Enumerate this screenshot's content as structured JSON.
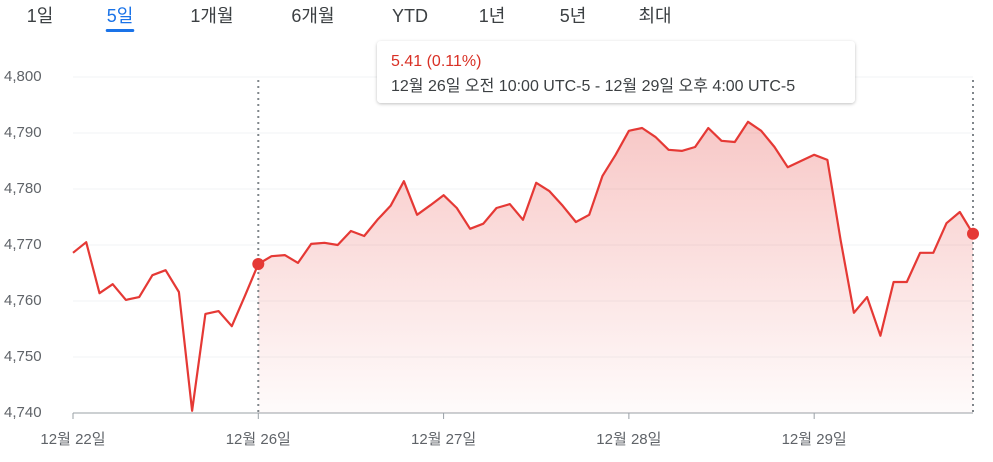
{
  "tabs": [
    "1일",
    "5일",
    "1개월",
    "6개월",
    "YTD",
    "1년",
    "5년",
    "최대"
  ],
  "active_tab": 1,
  "chart_data": {
    "type": "line",
    "color": "#e53935",
    "categories": [
      "12월 22일",
      null,
      null,
      null,
      null,
      null,
      null,
      null,
      null,
      null,
      null,
      null,
      null,
      null,
      "12월 26일",
      null,
      null,
      null,
      null,
      null,
      null,
      null,
      null,
      null,
      null,
      null,
      null,
      null,
      "12월 27일",
      null,
      null,
      null,
      null,
      null,
      null,
      null,
      null,
      null,
      null,
      null,
      null,
      null,
      "12월 28일",
      null,
      null,
      null,
      null,
      null,
      null,
      null,
      null,
      null,
      null,
      null,
      null,
      null,
      "12월 29일",
      null,
      null,
      null,
      null,
      null,
      null,
      null,
      null,
      null,
      null,
      null,
      null
    ],
    "values": [
      4768.6,
      4770.5,
      4761.4,
      4763.0,
      4760.2,
      4760.7,
      4764.6,
      4765.5,
      4761.6,
      4740.4,
      4757.7,
      4758.2,
      4755.5,
      4761.0,
      4766.6,
      4768.0,
      4768.2,
      4766.8,
      4770.2,
      4770.4,
      4770.0,
      4772.5,
      4771.6,
      4774.5,
      4777.0,
      4781.4,
      4775.4,
      4777.1,
      4778.9,
      4776.6,
      4772.9,
      4773.8,
      4776.6,
      4777.3,
      4774.5,
      4781.1,
      4779.6,
      4777.0,
      4774.1,
      4775.4,
      4782.3,
      4786.1,
      4790.4,
      4790.9,
      4789.3,
      4787.0,
      4786.8,
      4787.5,
      4790.9,
      4788.6,
      4788.4,
      4792.0,
      4790.4,
      4787.5,
      4783.9,
      4785.0,
      4786.1,
      4785.2,
      4770.9,
      4757.9,
      4760.7,
      4753.8,
      4763.4,
      4763.4,
      4768.6,
      4768.6,
      4773.9,
      4775.9,
      4772.0
    ],
    "ylim": [
      4740,
      4800
    ],
    "yticks": [
      {
        "value": 4740,
        "label": "4,740"
      },
      {
        "value": 4750,
        "label": "4,750"
      },
      {
        "value": 4760,
        "label": "4,760"
      },
      {
        "value": 4770,
        "label": "4,770"
      },
      {
        "value": 4780,
        "label": "4,780"
      },
      {
        "value": 4790,
        "label": "4,790"
      },
      {
        "value": 4800,
        "label": "4,800"
      }
    ],
    "highlight_range": [
      14,
      68
    ],
    "tooltip": {
      "change": "5.41 (0.11%)",
      "range": "12월 26일 오전 10:00 UTC-5 - 12월 29일 오후 4:00 UTC-5"
    }
  }
}
